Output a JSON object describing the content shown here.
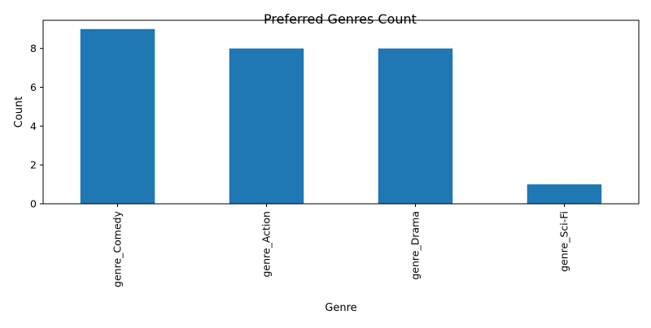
{
  "chart_data": {
    "type": "bar",
    "title": "Preferred Genres Count",
    "xlabel": "Genre",
    "ylabel": "Count",
    "categories": [
      "genre_Comedy",
      "genre_Action",
      "genre_Drama",
      "genre_Sci-Fi"
    ],
    "values": [
      9,
      8,
      8,
      1
    ],
    "ylim": [
      0,
      9.45
    ],
    "yticks": [
      0,
      2,
      4,
      6,
      8
    ],
    "bar_color": "#1f77b4",
    "grid": false,
    "legend": "none"
  }
}
